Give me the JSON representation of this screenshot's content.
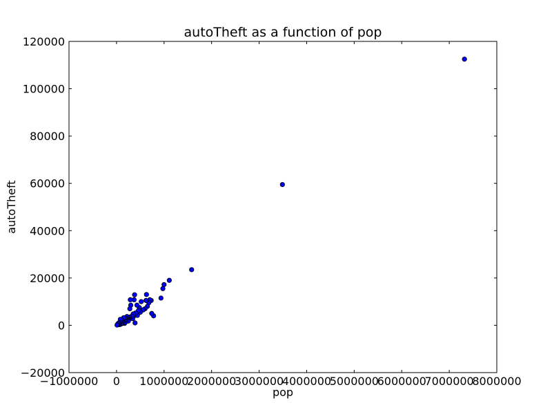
{
  "chart_data": {
    "type": "scatter",
    "title": "autoTheft as a function of pop",
    "xlabel": "pop",
    "ylabel": "autoTheft",
    "xlim": [
      -1000000,
      8000000
    ],
    "ylim": [
      -20000,
      120000
    ],
    "x_ticks": [
      "−1000000",
      "0",
      "1000000",
      "2000000",
      "3000000",
      "4000000",
      "5000000",
      "6000000",
      "7000000",
      "8000000"
    ],
    "y_ticks": [
      "−20000",
      "0",
      "20000",
      "40000",
      "60000",
      "80000",
      "100000",
      "120000"
    ],
    "grid": false,
    "marker_color": "#0000ff",
    "marker_edge_color": "#000000",
    "points": [
      [
        7320000,
        112500
      ],
      [
        3490000,
        59500
      ],
      [
        1580000,
        23500
      ],
      [
        1110000,
        19000
      ],
      [
        1000000,
        17200
      ],
      [
        975000,
        15500
      ],
      [
        935000,
        11500
      ],
      [
        780000,
        4000
      ],
      [
        740000,
        5000
      ],
      [
        730000,
        10500
      ],
      [
        700000,
        10800
      ],
      [
        680000,
        9500
      ],
      [
        650000,
        8000
      ],
      [
        630000,
        13000
      ],
      [
        620000,
        10500
      ],
      [
        600000,
        7000
      ],
      [
        560000,
        6500
      ],
      [
        520000,
        10000
      ],
      [
        500000,
        5500
      ],
      [
        480000,
        7500
      ],
      [
        460000,
        6200
      ],
      [
        440000,
        4200
      ],
      [
        430000,
        8500
      ],
      [
        400000,
        5200
      ],
      [
        390000,
        1000
      ],
      [
        380000,
        12900
      ],
      [
        370000,
        10800
      ],
      [
        360000,
        3800
      ],
      [
        350000,
        4800
      ],
      [
        340000,
        2800
      ],
      [
        320000,
        3800
      ],
      [
        300000,
        8500
      ],
      [
        290000,
        10800
      ],
      [
        280000,
        7000
      ],
      [
        270000,
        3500
      ],
      [
        260000,
        2500
      ],
      [
        250000,
        1800
      ],
      [
        240000,
        3200
      ],
      [
        220000,
        3700
      ],
      [
        210000,
        2800
      ],
      [
        200000,
        1500
      ],
      [
        190000,
        2200
      ],
      [
        180000,
        3000
      ],
      [
        170000,
        800
      ],
      [
        160000,
        2000
      ],
      [
        150000,
        3200
      ],
      [
        140000,
        1200
      ],
      [
        130000,
        800
      ],
      [
        120000,
        2000
      ],
      [
        110000,
        1500
      ],
      [
        100000,
        600
      ],
      [
        90000,
        1800
      ],
      [
        80000,
        2500
      ],
      [
        70000,
        300
      ],
      [
        60000,
        1200
      ],
      [
        50000,
        600
      ],
      [
        40000,
        900
      ],
      [
        30000,
        200
      ],
      [
        20000,
        400
      ],
      [
        10000,
        100
      ]
    ]
  }
}
